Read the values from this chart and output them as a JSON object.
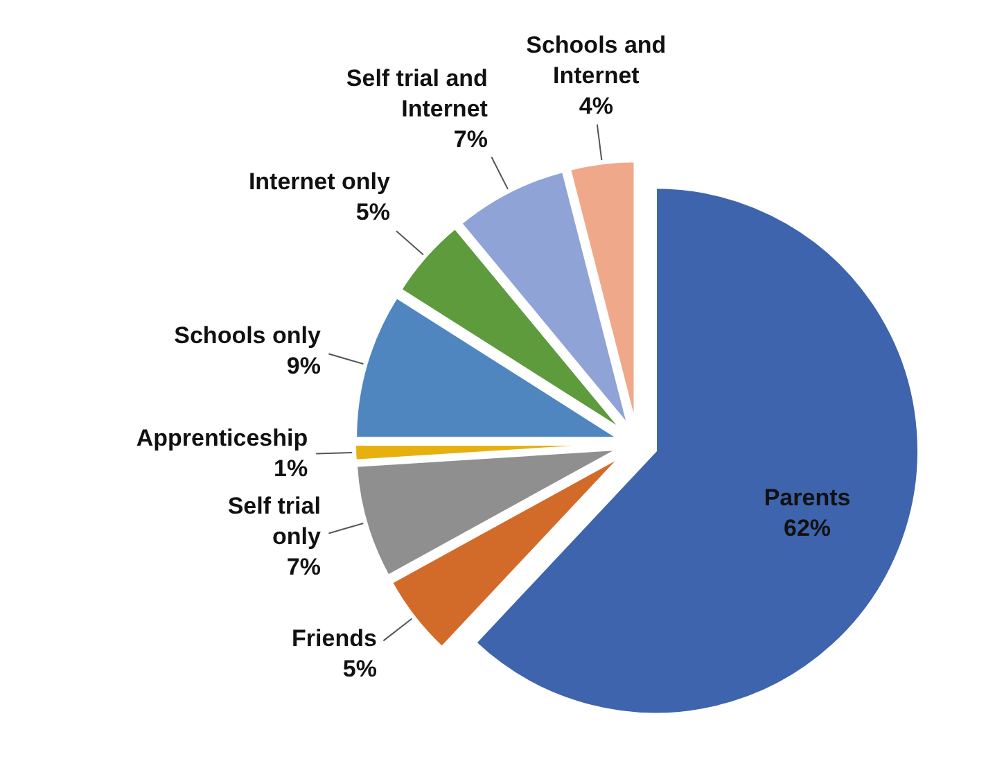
{
  "chart_data": {
    "type": "pie",
    "categories": [
      "Parents",
      "Friends",
      "Self trial only",
      "Apprenticeship",
      "Schools only",
      "Internet only",
      "Self trial and Internet",
      "Schools and Internet"
    ],
    "values": [
      62,
      5,
      7,
      1,
      9,
      5,
      7,
      4
    ],
    "value_labels": [
      "62%",
      "5%",
      "7%",
      "1%",
      "9%",
      "5%",
      "7%",
      "4%"
    ],
    "colors": [
      "#3d64ad",
      "#d26b2a",
      "#8f8f8f",
      "#e6b00f",
      "#4f86c0",
      "#5d9b3d",
      "#8fa3d6",
      "#f0a88a"
    ],
    "legend": false
  }
}
